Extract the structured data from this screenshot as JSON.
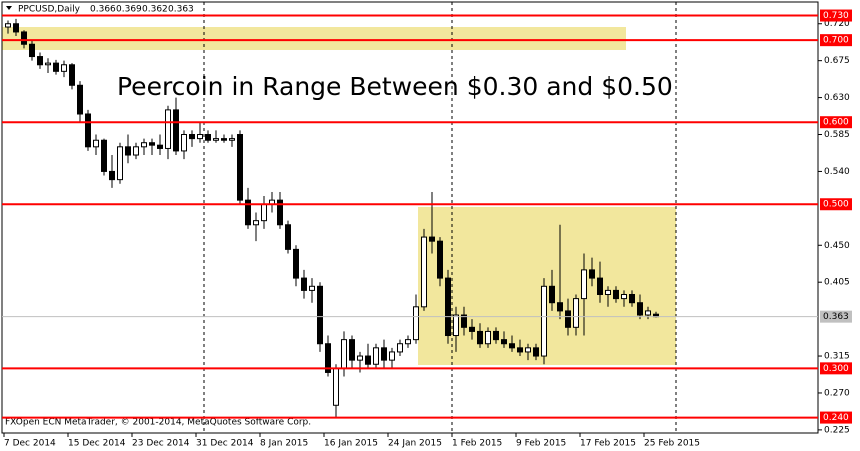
{
  "chart_data": {
    "type": "candlestick",
    "header": "PPCUSD,Daily",
    "annotation": "Peercoin in Range Between $0.30 and $0.50",
    "footer": "FXOpen ECN MetaTrader, © 2001-2014, MetaQuotes Software Corp.",
    "categories": [
      "7 Dec 2014",
      null,
      null,
      null,
      null,
      null,
      null,
      null,
      "15 Dec 2014",
      null,
      null,
      null,
      null,
      null,
      null,
      null,
      "23 Dec 2014",
      null,
      null,
      null,
      null,
      null,
      null,
      null,
      "31 Dec 2014",
      null,
      null,
      null,
      null,
      null,
      null,
      null,
      "8 Jan 2015",
      null,
      null,
      null,
      null,
      null,
      null,
      null,
      "16 Jan 2015",
      null,
      null,
      null,
      null,
      null,
      null,
      null,
      "24 Jan 2015",
      null,
      null,
      null,
      null,
      null,
      null,
      null,
      "1 Feb 2015",
      null,
      null,
      null,
      null,
      null,
      null,
      null,
      "9 Feb 2015",
      null,
      null,
      null,
      null,
      null,
      null,
      null,
      "17 Feb 2015",
      null,
      null,
      null,
      null,
      null,
      null,
      null,
      "25 Feb 2015",
      null
    ],
    "open": [
      0.716,
      0.72,
      0.71,
      0.695,
      0.68,
      0.67,
      0.672,
      0.662,
      0.67,
      0.645,
      0.61,
      0.57,
      0.578,
      0.54,
      0.53,
      0.57,
      0.56,
      0.57,
      0.575,
      0.572,
      0.568,
      0.615,
      0.565,
      0.585,
      0.58,
      0.585,
      0.578,
      0.58,
      0.578,
      0.585,
      0.505,
      0.475,
      0.48,
      0.5,
      0.505,
      0.475,
      0.445,
      0.41,
      0.395,
      0.4,
      0.33,
      0.255,
      0.3,
      0.335,
      0.31,
      0.315,
      0.305,
      0.325,
      0.31,
      0.32,
      0.33,
      0.335,
      0.375,
      0.46,
      0.455,
      0.41,
      0.34,
      0.365,
      0.35,
      0.345,
      0.33,
      0.345,
      0.335,
      0.33,
      0.325,
      0.32,
      0.325,
      0.315,
      0.4,
      0.38,
      0.37,
      0.35,
      0.385,
      0.42,
      0.41,
      0.39,
      0.395,
      0.385,
      0.39,
      0.38,
      0.365,
      0.366
    ],
    "high": [
      0.724,
      0.726,
      0.712,
      0.7,
      0.685,
      0.678,
      0.676,
      0.675,
      0.672,
      0.65,
      0.615,
      0.585,
      0.58,
      0.56,
      0.575,
      0.585,
      0.575,
      0.58,
      0.58,
      0.585,
      0.62,
      0.63,
      0.59,
      0.59,
      0.6,
      0.59,
      0.59,
      0.585,
      0.585,
      0.59,
      0.52,
      0.49,
      0.51,
      0.515,
      0.515,
      0.48,
      0.45,
      0.42,
      0.41,
      0.405,
      0.34,
      0.305,
      0.345,
      0.34,
      0.32,
      0.33,
      0.33,
      0.335,
      0.325,
      0.335,
      0.34,
      0.39,
      0.47,
      0.515,
      0.46,
      0.42,
      0.375,
      0.375,
      0.36,
      0.355,
      0.35,
      0.35,
      0.345,
      0.34,
      0.335,
      0.33,
      0.33,
      0.41,
      0.42,
      0.475,
      0.385,
      0.39,
      0.44,
      0.435,
      0.43,
      0.4,
      0.4,
      0.395,
      0.395,
      0.39,
      0.375,
      0.369
    ],
    "low": [
      0.708,
      0.705,
      0.69,
      0.675,
      0.665,
      0.66,
      0.658,
      0.655,
      0.64,
      0.6,
      0.565,
      0.56,
      0.535,
      0.52,
      0.525,
      0.55,
      0.555,
      0.56,
      0.56,
      0.56,
      0.555,
      0.56,
      0.555,
      0.57,
      0.575,
      0.575,
      0.575,
      0.575,
      0.57,
      0.5,
      0.47,
      0.455,
      0.47,
      0.49,
      0.47,
      0.44,
      0.4,
      0.385,
      0.38,
      0.32,
      0.29,
      0.24,
      0.29,
      0.3,
      0.295,
      0.3,
      0.3,
      0.3,
      0.3,
      0.315,
      0.325,
      0.33,
      0.37,
      0.44,
      0.4,
      0.33,
      0.32,
      0.34,
      0.335,
      0.325,
      0.325,
      0.33,
      0.325,
      0.32,
      0.315,
      0.31,
      0.31,
      0.305,
      0.37,
      0.36,
      0.34,
      0.34,
      0.34,
      0.4,
      0.38,
      0.375,
      0.38,
      0.375,
      0.375,
      0.36,
      0.36,
      0.362
    ],
    "close": [
      0.72,
      0.71,
      0.695,
      0.68,
      0.67,
      0.672,
      0.662,
      0.67,
      0.645,
      0.61,
      0.57,
      0.578,
      0.54,
      0.53,
      0.57,
      0.56,
      0.57,
      0.575,
      0.572,
      0.568,
      0.615,
      0.565,
      0.585,
      0.58,
      0.585,
      0.578,
      0.58,
      0.578,
      0.58,
      0.505,
      0.475,
      0.48,
      0.5,
      0.505,
      0.475,
      0.445,
      0.41,
      0.395,
      0.4,
      0.33,
      0.295,
      0.3,
      0.335,
      0.31,
      0.315,
      0.305,
      0.325,
      0.31,
      0.32,
      0.33,
      0.335,
      0.375,
      0.46,
      0.455,
      0.41,
      0.34,
      0.365,
      0.35,
      0.345,
      0.33,
      0.345,
      0.335,
      0.33,
      0.325,
      0.32,
      0.325,
      0.315,
      0.4,
      0.38,
      0.37,
      0.35,
      0.385,
      0.42,
      0.41,
      0.39,
      0.395,
      0.385,
      0.39,
      0.38,
      0.365,
      0.37,
      0.363
    ],
    "ylim": [
      0.2212,
      0.7465
    ],
    "yticks": [
      {
        "value": 0.72,
        "label": "0.720"
      },
      0.675,
      {
        "value": 0.63,
        "label": "0.630"
      },
      0.585,
      {
        "value": 0.54,
        "label": "0.540"
      },
      {
        "value": 0.45,
        "label": "0.450"
      },
      0.405,
      0.315,
      {
        "value": 0.27,
        "label": "0.270"
      },
      0.225
    ],
    "levels": [
      {
        "value": 0.73,
        "label": "0.730"
      },
      {
        "value": 0.7,
        "label": "0.700"
      },
      {
        "value": 0.6,
        "label": "0.600"
      },
      {
        "value": 0.5,
        "label": "0.500"
      },
      {
        "value": 0.3,
        "label": "0.300"
      },
      {
        "value": 0.24,
        "label": "0.240"
      }
    ],
    "level_color": "#ff0000",
    "up_color": "#ffffff",
    "down_color": "#000000"
  }
}
